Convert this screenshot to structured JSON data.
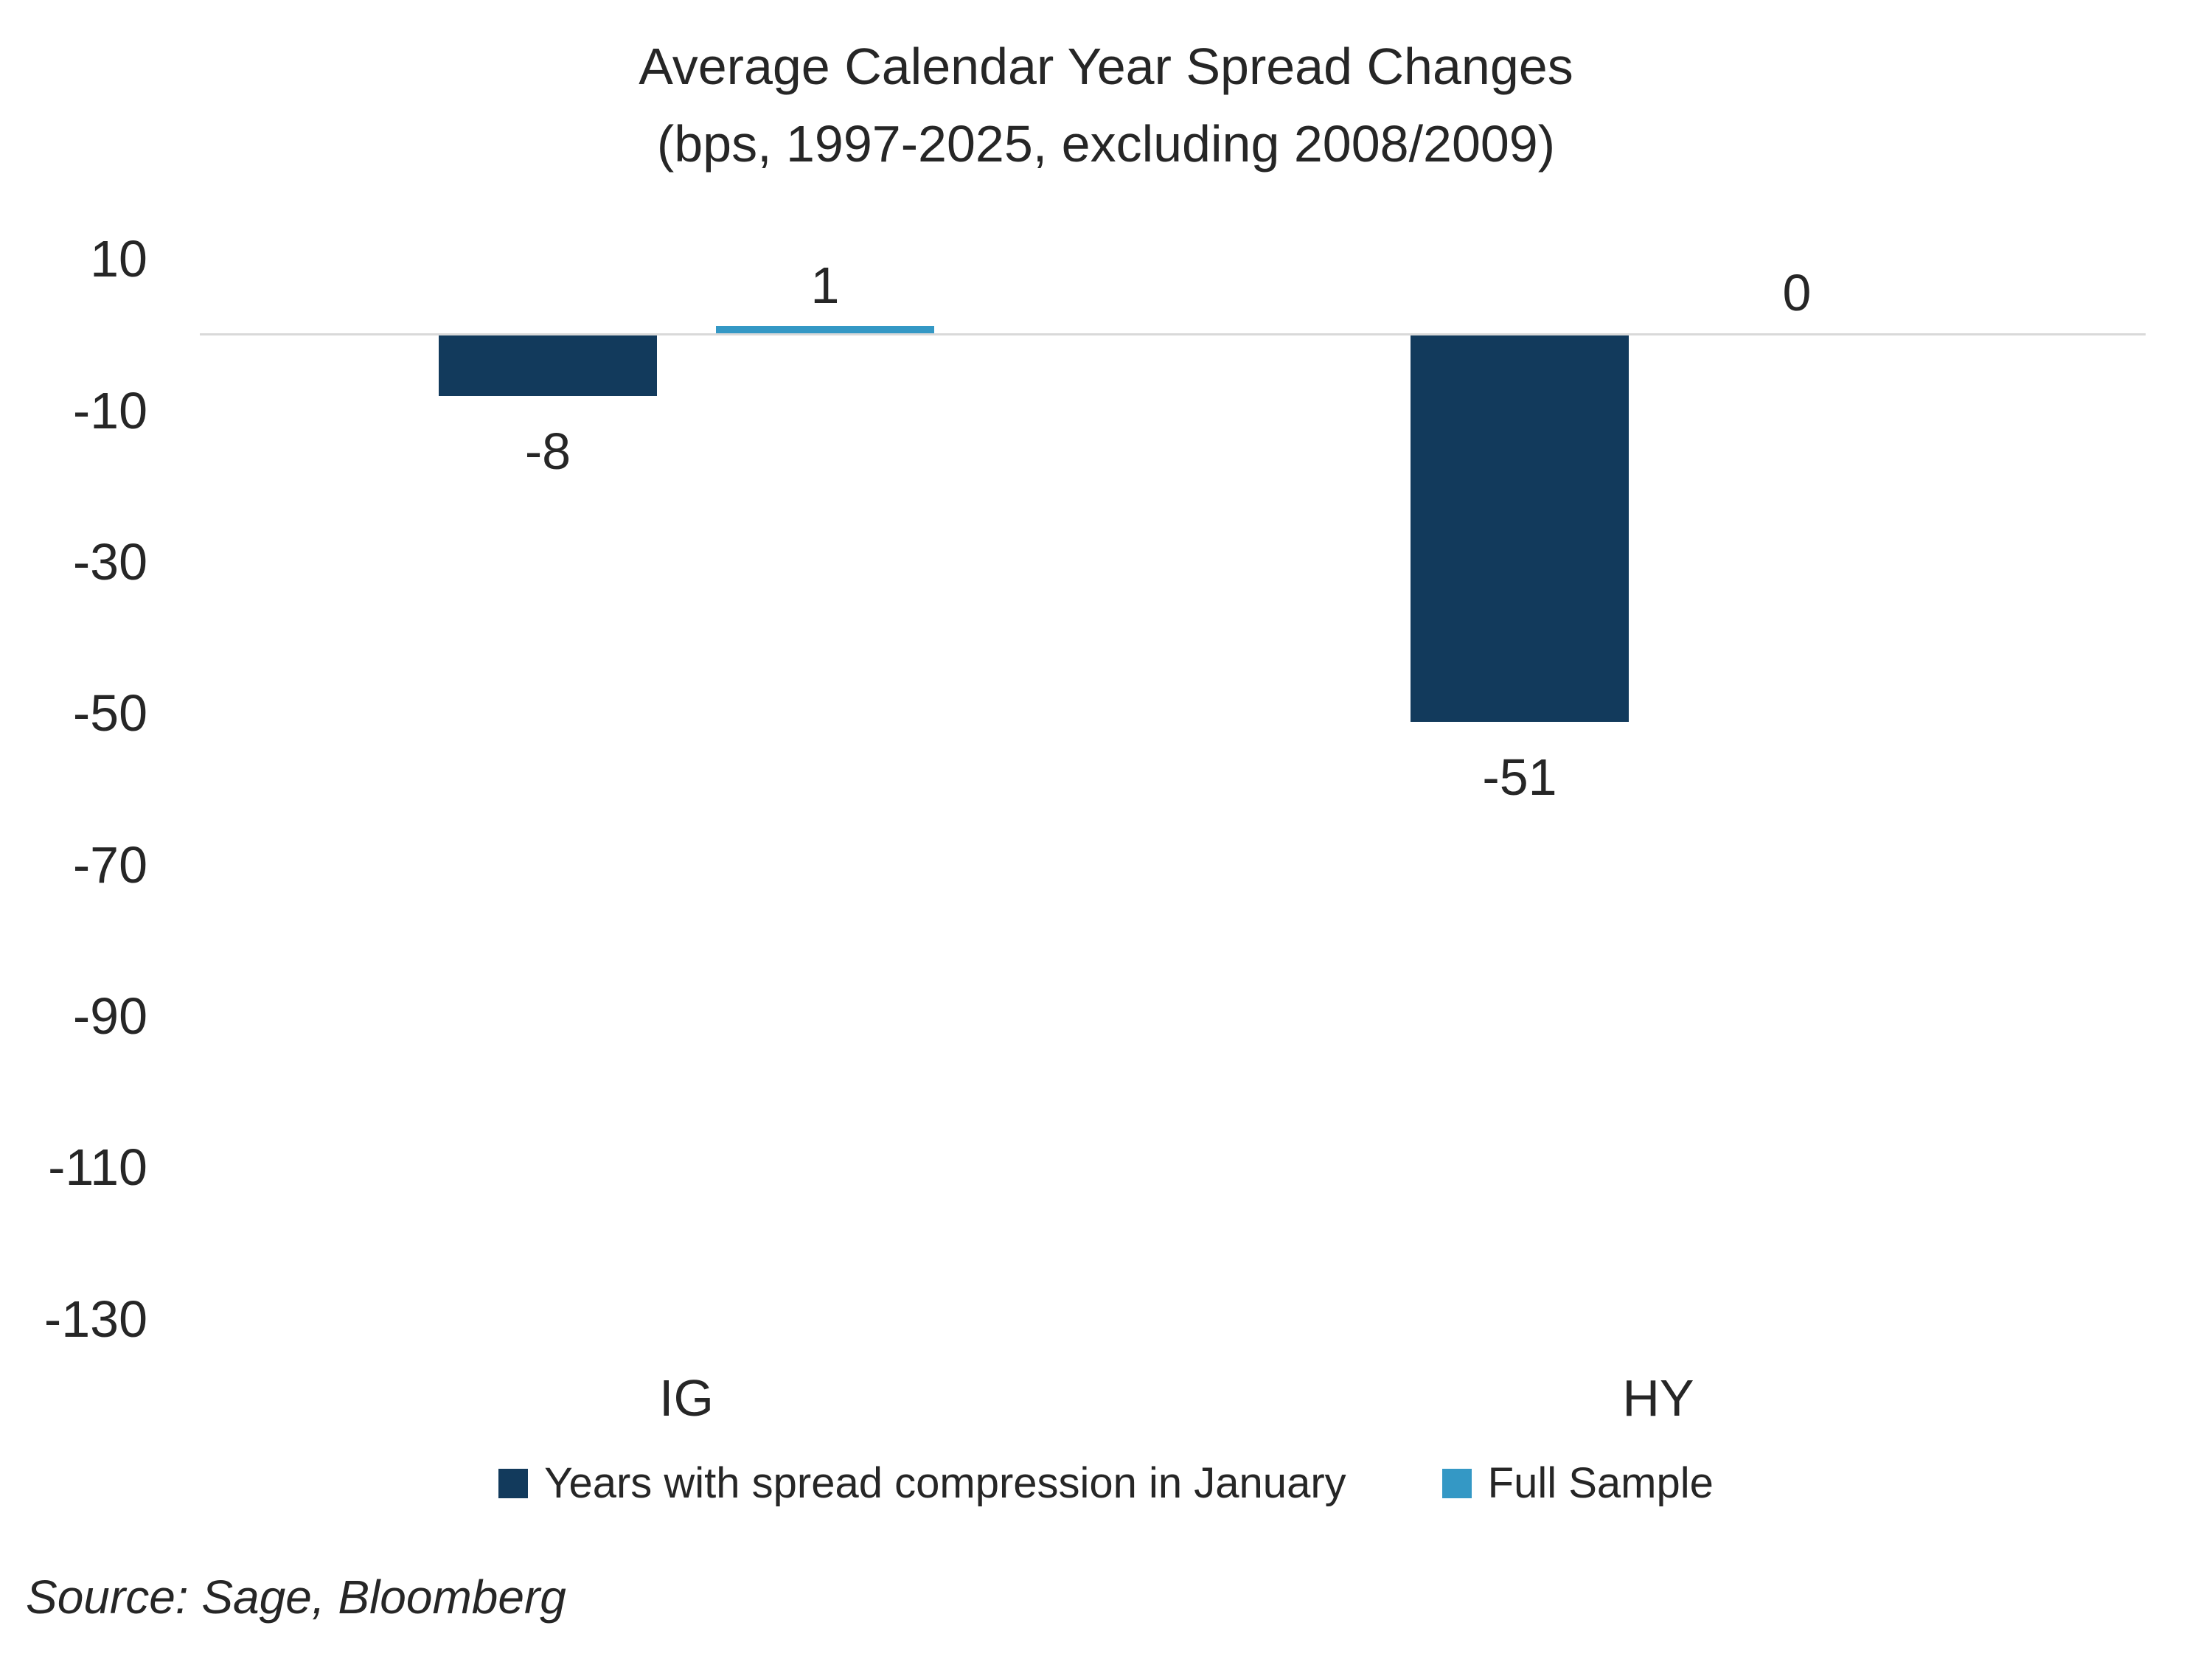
{
  "title": {
    "line1": "Average Calendar Year Spread Changes",
    "line2": "(bps, 1997-2025, excluding 2008/2009)"
  },
  "source": "Source: Sage, Bloomberg",
  "colors": {
    "navy": "#123A5C",
    "light_blue": "#3498C5",
    "gridline": "#D9D9D9",
    "text": "#262626"
  },
  "chart_data": {
    "type": "bar",
    "title": "Average Calendar Year Spread Changes (bps, 1997-2025, excluding 2008/2009)",
    "categories": [
      "IG",
      "HY"
    ],
    "series": [
      {
        "name": "Years with spread compression in January",
        "color": "#123A5C",
        "values": [
          -8,
          -51
        ]
      },
      {
        "name": "Full Sample",
        "color": "#3498C5",
        "values": [
          1,
          0
        ]
      }
    ],
    "data_labels": [
      [
        "-8",
        "-51"
      ],
      [
        "1",
        "0"
      ]
    ],
    "y_ticks": [
      10,
      -10,
      -30,
      -50,
      -70,
      -90,
      -110,
      -130
    ],
    "ylim": [
      -140,
      15
    ],
    "xlabel": "",
    "ylabel": "",
    "grid": false,
    "baseline_at": 0,
    "legend_position": "bottom"
  }
}
